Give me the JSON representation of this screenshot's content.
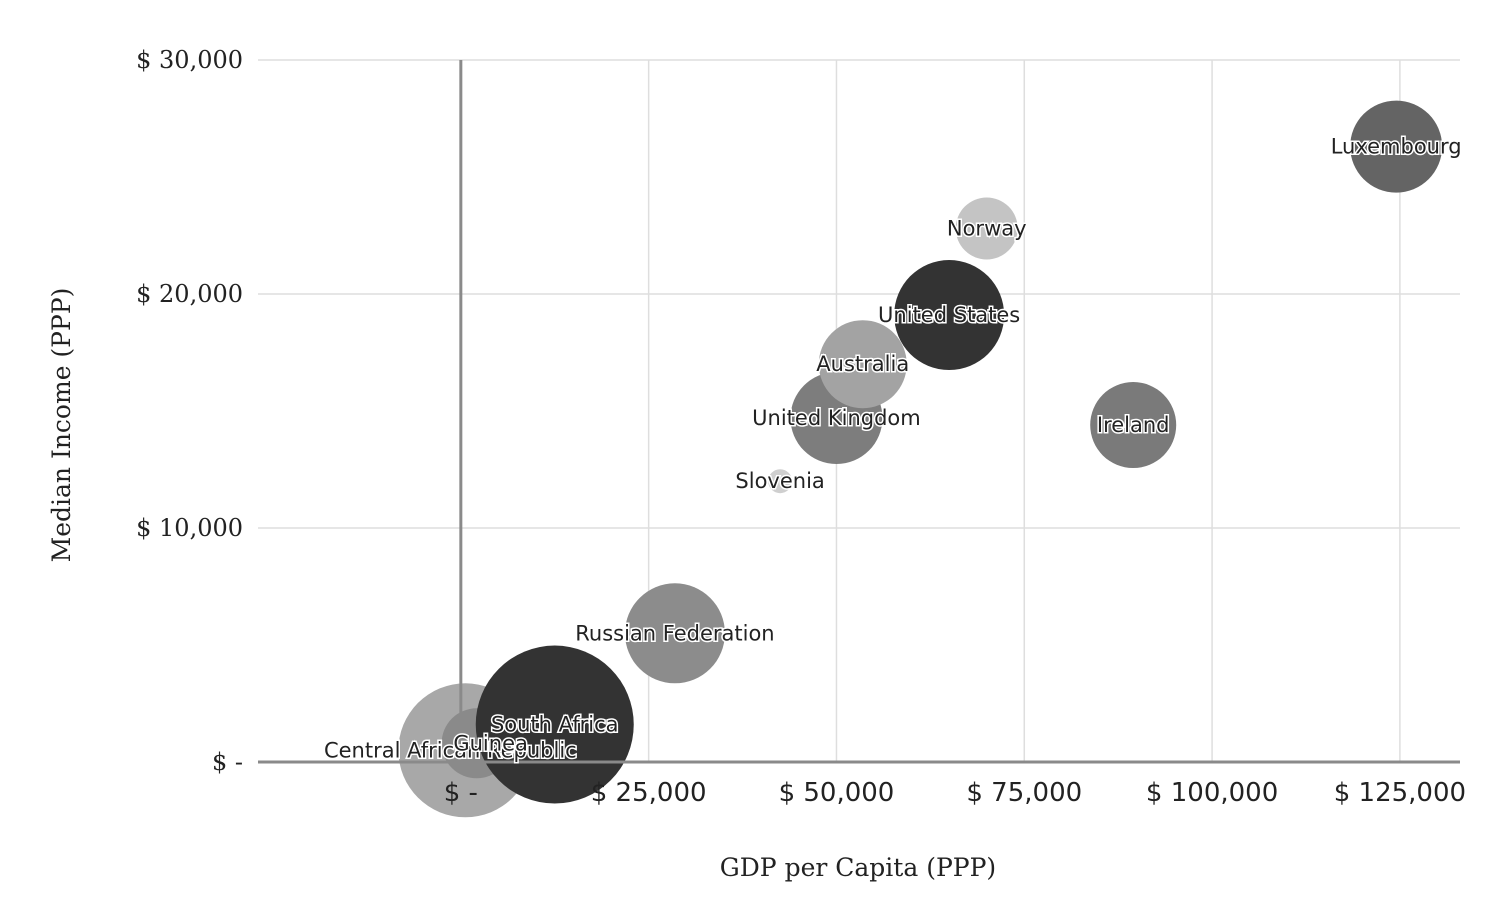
{
  "chart_data": {
    "type": "bubble",
    "xlabel": "GDP per Capita (PPP)",
    "ylabel": "Median Income (PPP)",
    "xlim": [
      -27000,
      133000
    ],
    "ylim": [
      0,
      30000
    ],
    "x_ticks": [
      {
        "value": 0,
        "label": "$ -"
      },
      {
        "value": 25000,
        "label": "$ 25,000"
      },
      {
        "value": 50000,
        "label": "$ 50,000"
      },
      {
        "value": 75000,
        "label": "$ 75,000"
      },
      {
        "value": 100000,
        "label": "$ 100,000"
      },
      {
        "value": 125000,
        "label": "$ 125,000"
      }
    ],
    "y_ticks": [
      {
        "value": 0,
        "label": "$ -"
      },
      {
        "value": 10000,
        "label": "$ 10,000"
      },
      {
        "value": 20000,
        "label": "$ 20,000"
      },
      {
        "value": 30000,
        "label": "$ 30,000"
      }
    ],
    "grid": true,
    "points": [
      {
        "label": "Central African Republic",
        "x": 600,
        "y": 500,
        "size": 67,
        "color": "#a8a8a8"
      },
      {
        "label": "Guinea",
        "x": 2100,
        "y": 800,
        "size": 35,
        "color": "#8a8a8a"
      },
      {
        "label": "South Africa",
        "x": 12500,
        "y": 1600,
        "size": 79,
        "color": "#333333"
      },
      {
        "label": "Russian Federation",
        "x": 28500,
        "y": 5500,
        "size": 50,
        "color": "#8c8c8c"
      },
      {
        "label": "Slovenia",
        "x": 42500,
        "y": 12000,
        "size": 12,
        "color": "#cfcfcf"
      },
      {
        "label": "United Kingdom",
        "x": 50000,
        "y": 14700,
        "size": 46,
        "color": "#7d7d7d"
      },
      {
        "label": "Australia",
        "x": 53500,
        "y": 17000,
        "size": 44,
        "color": "#a3a3a3"
      },
      {
        "label": "United States",
        "x": 65000,
        "y": 19100,
        "size": 55,
        "color": "#333333"
      },
      {
        "label": "Norway",
        "x": 70000,
        "y": 22800,
        "size": 31,
        "color": "#c4c4c4"
      },
      {
        "label": "Ireland",
        "x": 89500,
        "y": 14400,
        "size": 43,
        "color": "#7a7a7a"
      },
      {
        "label": "Luxembourg",
        "x": 124500,
        "y": 26300,
        "size": 46,
        "color": "#646464"
      }
    ]
  }
}
